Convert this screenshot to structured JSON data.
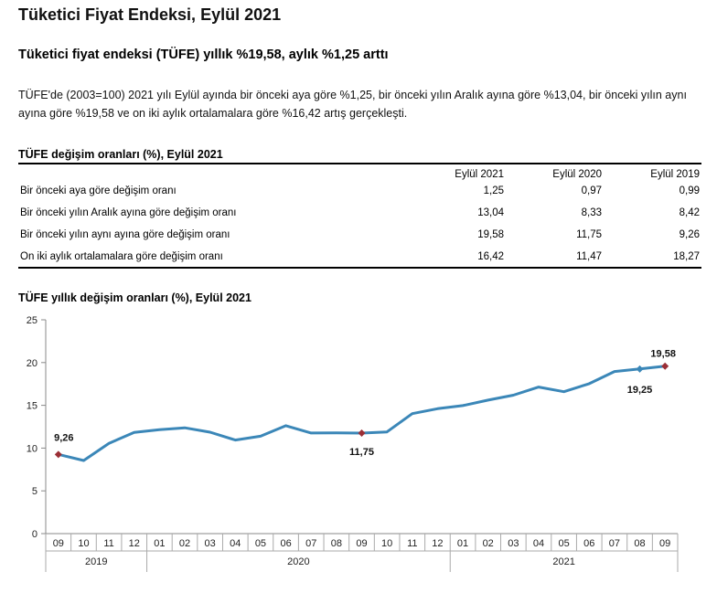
{
  "page": {
    "title": "Tüketici Fiyat Endeksi, Eylül 2021",
    "subtitle": "Tüketici fiyat endeksi (TÜFE) yıllık %19,58, aylık %1,25 arttı",
    "intro": "TÜFE'de (2003=100) 2021 yılı Eylül ayında bir önceki aya göre %1,25, bir önceki yılın Aralık ayına göre %13,04, bir önceki yılın aynı ayına göre %19,58 ve on iki aylık ortalamalara göre %16,42 artış gerçekleşti."
  },
  "table": {
    "title": "TÜFE değişim oranları (%), Eylül 2021",
    "columns": [
      "Eylül 2021",
      "Eylül 2020",
      "Eylül 2019"
    ],
    "rows": [
      {
        "label": "Bir önceki aya göre değişim oranı",
        "values": [
          "1,25",
          "0,97",
          "0,99"
        ]
      },
      {
        "label": "Bir önceki yılın Aralık ayına göre değişim oranı",
        "values": [
          "13,04",
          "8,33",
          "8,42"
        ]
      },
      {
        "label": "Bir önceki yılın aynı ayına göre değişim oranı",
        "values": [
          "19,58",
          "11,75",
          "9,26"
        ]
      },
      {
        "label": "On iki aylık ortalamalara göre değişim oranı",
        "values": [
          "16,42",
          "11,47",
          "18,27"
        ]
      }
    ]
  },
  "chart_data": {
    "type": "line",
    "title": "TÜFE yıllık değişim oranları (%), Eylül 2021",
    "categories": [
      "09",
      "10",
      "11",
      "12",
      "01",
      "02",
      "03",
      "04",
      "05",
      "06",
      "07",
      "08",
      "09",
      "10",
      "11",
      "12",
      "01",
      "02",
      "03",
      "04",
      "05",
      "06",
      "07",
      "08",
      "09"
    ],
    "year_groups": [
      {
        "label": "2019",
        "start": 0,
        "end": 3
      },
      {
        "label": "2020",
        "start": 4,
        "end": 15
      },
      {
        "label": "2021",
        "start": 16,
        "end": 24
      }
    ],
    "series": [
      {
        "name": "TÜFE yıllık değişim",
        "color": "#3b87b8",
        "values": [
          9.26,
          8.55,
          10.56,
          11.84,
          12.15,
          12.37,
          11.86,
          10.94,
          11.39,
          12.62,
          11.76,
          11.77,
          11.75,
          11.89,
          14.03,
          14.6,
          14.97,
          15.61,
          16.19,
          17.14,
          16.59,
          17.53,
          18.95,
          19.25,
          19.58
        ]
      }
    ],
    "markers": [
      {
        "index": 0,
        "label": "9,26",
        "color": "#9b2f36"
      },
      {
        "index": 12,
        "label": "11,75",
        "color": "#9b2f36"
      },
      {
        "index": 23,
        "label": "19,25",
        "color": "#3b87b8"
      },
      {
        "index": 24,
        "label": "19,58",
        "color": "#9b2f36"
      }
    ],
    "ylim": [
      0,
      25
    ],
    "yticks": [
      0,
      5,
      10,
      15,
      20,
      25
    ],
    "xlabel": "",
    "ylabel": ""
  }
}
